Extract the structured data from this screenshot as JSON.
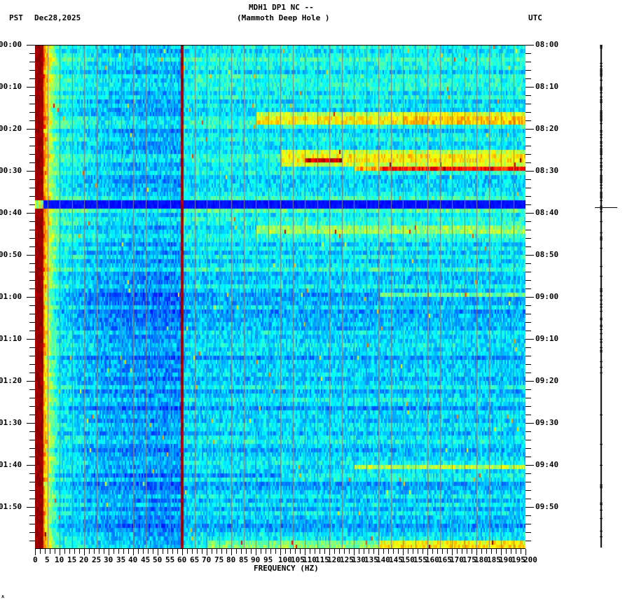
{
  "header": {
    "station_line": "MDH1 DP1 NC --",
    "site_line": "(Mammoth Deep Hole )",
    "tz_left": "PST",
    "date": "Dec28,2025",
    "tz_right": "UTC"
  },
  "footer": {
    "corner_mark": "ʌ"
  },
  "chart_data": {
    "type": "heatmap",
    "title": "MDH1 DP1 NC -- (Mammoth Deep Hole )",
    "subtitle": "Dec28,2025",
    "xlabel": "FREQUENCY (HZ)",
    "ylabel_left": "PST",
    "ylabel_right": "UTC",
    "xlim": [
      0,
      200
    ],
    "x_ticks": [
      "0",
      "5",
      "10",
      "15",
      "20",
      "25",
      "30",
      "35",
      "40",
      "45",
      "50",
      "55",
      "60",
      "65",
      "70",
      "75",
      "80",
      "85",
      "90",
      "95",
      "100",
      "105",
      "110",
      "115",
      "120",
      "125",
      "130",
      "135",
      "140",
      "145",
      "150",
      "155",
      "160",
      "165",
      "170",
      "175",
      "180",
      "185",
      "190",
      "195",
      "200"
    ],
    "x_minor_tick_step_hz": 1,
    "y_ticks_left": [
      "00:00",
      "00:10",
      "00:20",
      "00:30",
      "00:40",
      "00:50",
      "01:00",
      "01:10",
      "01:20",
      "01:30",
      "01:40",
      "01:50"
    ],
    "y_ticks_right": [
      "08:00",
      "08:10",
      "08:20",
      "08:30",
      "08:40",
      "08:50",
      "09:00",
      "09:10",
      "09:20",
      "09:30",
      "09:40",
      "09:50"
    ],
    "y_minor_tick_step_min": 2,
    "time_span_min": 120,
    "grid": {
      "vertical_every_hz": 5,
      "color": "#808080"
    },
    "colormap": "jet",
    "colormap_stops": [
      "#00007f",
      "#0000ff",
      "#007fff",
      "#00ffff",
      "#7fff7f",
      "#ffff00",
      "#ff7f00",
      "#ff0000",
      "#7f0000"
    ],
    "features": [
      {
        "type": "low-frequency high power",
        "freq_range_hz": [
          0,
          12
        ],
        "level": "high (red/dark red)"
      },
      {
        "type": "persistent line",
        "freq_hz": 60,
        "level": "dark red"
      },
      {
        "type": "gap / low-power band",
        "time_pst": "00:37",
        "level": "dark blue"
      },
      {
        "type": "horizontal band",
        "time_pst": "00:29",
        "freq_range_hz": [
          140,
          200
        ],
        "level": "dark red"
      },
      {
        "type": "horizontal band",
        "time_pst": "00:25-00:28",
        "freq_range_hz": [
          100,
          200
        ],
        "level": "yellow/orange"
      },
      {
        "type": "horizontal band",
        "time_pst": "00:16-00:18",
        "freq_range_hz": [
          90,
          200
        ],
        "level": "yellow"
      },
      {
        "type": "horizontal band",
        "time_pst": "00:56",
        "freq_range_hz": [
          65,
          200
        ],
        "level": "spots red"
      },
      {
        "type": "horizontal band",
        "time_pst": "01:40",
        "freq_range_hz": [
          130,
          200
        ],
        "level": "yellow-green"
      },
      {
        "type": "horizontal band",
        "time_pst": "01:59",
        "freq_range_hz": [
          140,
          200
        ],
        "level": "yellow/orange"
      }
    ],
    "background_level": "blue/cyan",
    "trace": {
      "description": "seismogram trace, right side",
      "mark_time_pst": "00:39"
    }
  }
}
